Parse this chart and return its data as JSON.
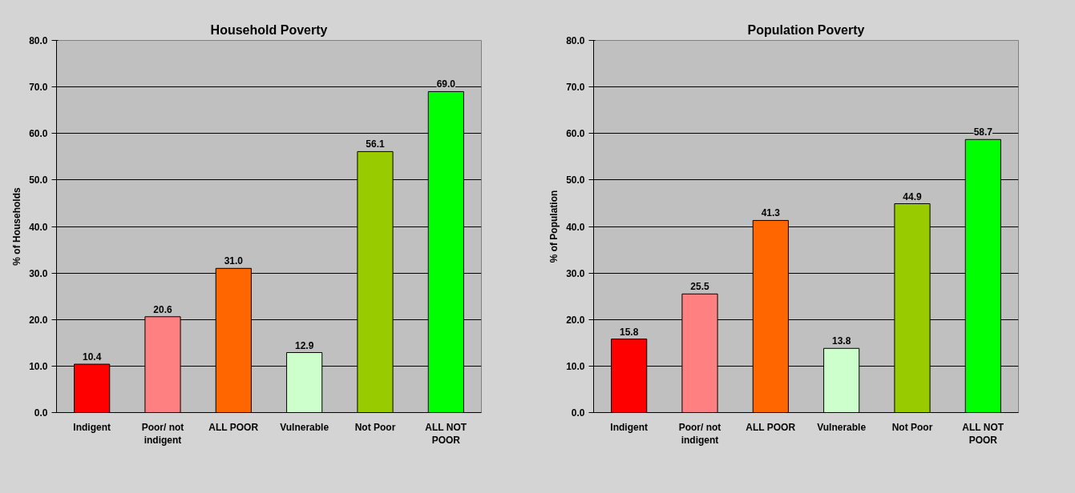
{
  "chart_data": [
    {
      "type": "bar",
      "title": "Household Poverty",
      "ylabel": "% of Households",
      "categories": [
        "Indigent",
        "Poor/ not indigent",
        "ALL POOR",
        "Vulnerable",
        "Not Poor",
        "ALL NOT POOR"
      ],
      "values": [
        10.4,
        20.6,
        31.0,
        12.9,
        56.1,
        69.0
      ],
      "colors": [
        "#ff0000",
        "#ff8080",
        "#ff6600",
        "#ccffcc",
        "#99cc00",
        "#00ff00"
      ],
      "ylim": [
        0,
        80
      ],
      "yticks": [
        {
          "value": 0,
          "label": "0.0"
        },
        {
          "value": 10,
          "label": "10.0"
        },
        {
          "value": 20,
          "label": "20.0"
        },
        {
          "value": 30,
          "label": "30.0"
        },
        {
          "value": 40,
          "label": "40.0"
        },
        {
          "value": 50,
          "label": "50.0"
        },
        {
          "value": 60,
          "label": "60.0"
        },
        {
          "value": 70,
          "label": "70.0"
        },
        {
          "value": 80,
          "label": "80.0"
        }
      ],
      "value_labels": [
        "10.4",
        "20.6",
        "31.0",
        "12.9",
        "56.1",
        "69.0"
      ],
      "grid": "y"
    },
    {
      "type": "bar",
      "title": "Population Poverty",
      "ylabel": "% of Population",
      "categories": [
        "Indigent",
        "Poor/ not indigent",
        "ALL POOR",
        "Vulnerable",
        "Not Poor",
        "ALL NOT POOR"
      ],
      "values": [
        15.8,
        25.5,
        41.3,
        13.8,
        44.9,
        58.7
      ],
      "colors": [
        "#ff0000",
        "#ff8080",
        "#ff6600",
        "#ccffcc",
        "#99cc00",
        "#00ff00"
      ],
      "ylim": [
        0,
        80
      ],
      "yticks": [
        {
          "value": 0,
          "label": "0.0"
        },
        {
          "value": 10,
          "label": "10.0"
        },
        {
          "value": 20,
          "label": "20.0"
        },
        {
          "value": 30,
          "label": "30.0"
        },
        {
          "value": 40,
          "label": "40.0"
        },
        {
          "value": 50,
          "label": "50.0"
        },
        {
          "value": 60,
          "label": "60.0"
        },
        {
          "value": 70,
          "label": "70.0"
        },
        {
          "value": 80,
          "label": "80.0"
        }
      ],
      "value_labels": [
        "15.8",
        "25.5",
        "41.3",
        "13.8",
        "44.9",
        "58.7"
      ],
      "grid": "y"
    }
  ]
}
